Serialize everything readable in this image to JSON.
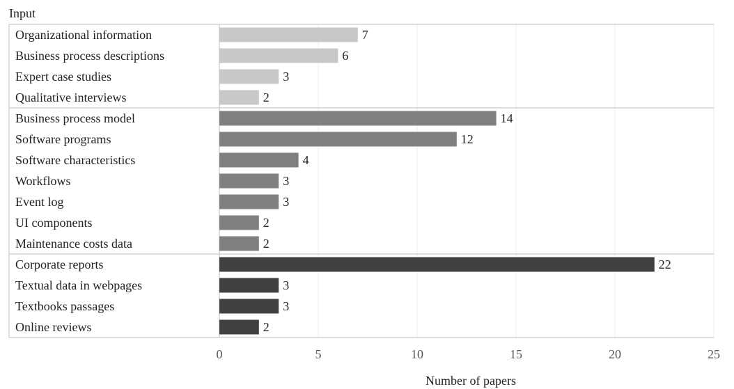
{
  "chart_data": {
    "type": "bar",
    "orientation": "horizontal",
    "column_header": "Input",
    "xlabel": "Number of papers",
    "xlim": [
      0,
      25
    ],
    "xticks": [
      0,
      5,
      10,
      15,
      20,
      25
    ],
    "grid": true,
    "groups": [
      {
        "color": "#c8c8c8",
        "items": [
          {
            "label": "Organizational information",
            "value": 7
          },
          {
            "label": "Business process descriptions",
            "value": 6
          },
          {
            "label": "Expert case studies",
            "value": 3
          },
          {
            "label": "Qualitative interviews",
            "value": 2
          }
        ]
      },
      {
        "color": "#808080",
        "items": [
          {
            "label": "Business process model",
            "value": 14
          },
          {
            "label": "Software programs",
            "value": 12
          },
          {
            "label": "Software characteristics",
            "value": 4
          },
          {
            "label": "Workflows",
            "value": 3
          },
          {
            "label": "Event log",
            "value": 3
          },
          {
            "label": "UI components",
            "value": 2
          },
          {
            "label": "Maintenance costs data",
            "value": 2
          }
        ]
      },
      {
        "color": "#404040",
        "items": [
          {
            "label": "Corporate reports",
            "value": 22
          },
          {
            "label": "Textual data in webpages",
            "value": 3
          },
          {
            "label": "Textbooks passages",
            "value": 3
          },
          {
            "label": "Online reviews",
            "value": 2
          }
        ]
      }
    ]
  }
}
